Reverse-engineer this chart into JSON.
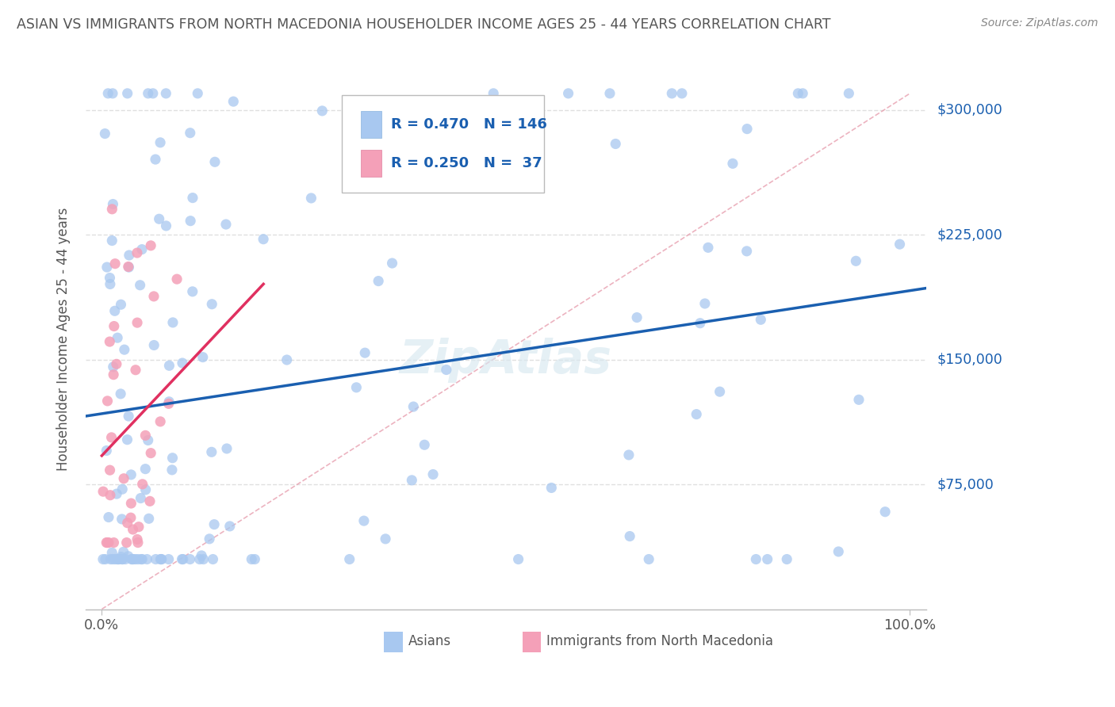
{
  "title": "ASIAN VS IMMIGRANTS FROM NORTH MACEDONIA HOUSEHOLDER INCOME AGES 25 - 44 YEARS CORRELATION CHART",
  "source": "Source: ZipAtlas.com",
  "ylabel": "Householder Income Ages 25 - 44 years",
  "ytick_labels": [
    "$75,000",
    "$150,000",
    "$225,000",
    "$300,000"
  ],
  "ytick_values": [
    75000,
    150000,
    225000,
    300000
  ],
  "ylim": [
    0,
    325000
  ],
  "xlim": [
    -0.02,
    1.02
  ],
  "asian_R": 0.47,
  "asian_N": 146,
  "mac_R": 0.25,
  "mac_N": 37,
  "asian_color": "#a8c8f0",
  "mac_color": "#f4a0b8",
  "asian_line_color": "#1a5fb0",
  "mac_line_color": "#e03060",
  "diag_color": "#e8a0b0",
  "background_color": "#ffffff",
  "grid_color": "#e0e0e0",
  "legend_text_color": "#1a5fb0",
  "title_color": "#555555"
}
